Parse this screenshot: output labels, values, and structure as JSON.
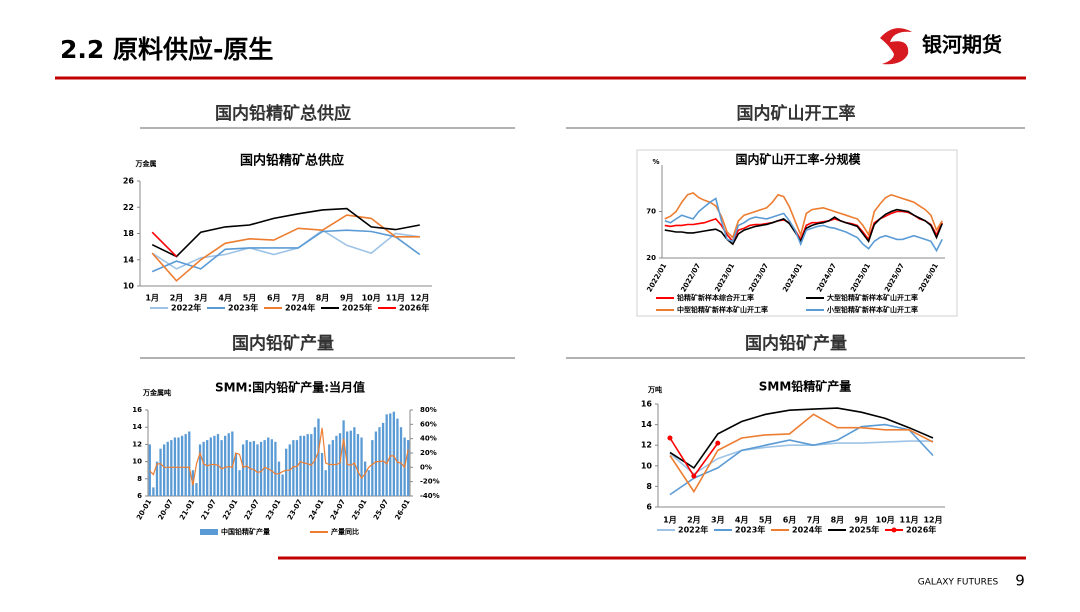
{
  "header": {
    "title": "2.2 原料供应-原生",
    "logo": "银河期货"
  },
  "sections": [
    "国内铅精矿总供应",
    "国内矿山开工率",
    "国内铅矿产量",
    "国内铅矿产量"
  ],
  "footer": {
    "brand": "GALAXY FUTURES",
    "page": "9"
  },
  "chart_data": [
    {
      "type": "line",
      "title": "国内铅精矿总供应",
      "y_label": "万金属",
      "categories": [
        "1月",
        "2月",
        "3月",
        "4月",
        "5月",
        "6月",
        "7月",
        "8月",
        "9月",
        "10月",
        "11月",
        "12月"
      ],
      "ylim": [
        10,
        26
      ],
      "yticks": [
        10,
        14,
        18,
        22,
        26
      ],
      "series": [
        {
          "name": "2022年",
          "color": "#9dc3e6",
          "values": [
            15,
            12.6,
            14.3,
            14.8,
            15.8,
            14.8,
            15.8,
            18.5,
            16.2,
            15,
            18,
            17.5
          ]
        },
        {
          "name": "2023年",
          "color": "#5b9bd5",
          "values": [
            12.2,
            13.8,
            12.6,
            15.6,
            15.8,
            15.8,
            15.8,
            18.3,
            18.5,
            18.3,
            17.5,
            14.8
          ]
        },
        {
          "name": "2024年",
          "color": "#ed7d31",
          "values": [
            15,
            10.8,
            14,
            16.5,
            17.2,
            17,
            18.8,
            18.5,
            20.8,
            20.3,
            17.5,
            17.5
          ]
        },
        {
          "name": "2025年",
          "color": "#000000",
          "values": [
            16.3,
            14.5,
            18.2,
            19,
            19.3,
            20.3,
            21,
            21.6,
            21.8,
            19,
            18.6,
            19.3
          ]
        },
        {
          "name": "2026年",
          "color": "#ff0000",
          "values": [
            18.2,
            14.5,
            null,
            null,
            null,
            null,
            null,
            null,
            null,
            null,
            null,
            null
          ]
        }
      ]
    },
    {
      "type": "line",
      "title": "国内矿山开工率-分规模",
      "y_label": "%",
      "categories": [
        "2022/01",
        null,
        null,
        null,
        null,
        null,
        "2022/07",
        null,
        null,
        null,
        null,
        null,
        "2023/01",
        null,
        null,
        null,
        null,
        null,
        "2023/07",
        null,
        null,
        null,
        null,
        null,
        "2024/01",
        null,
        null,
        null,
        null,
        null,
        "2024/07",
        null,
        null,
        null,
        null,
        null,
        "2025/01",
        null,
        null,
        null,
        null,
        null,
        "2025/07",
        null,
        null,
        null,
        null,
        null,
        "2026/01",
        null
      ],
      "ylim": [
        20,
        120
      ],
      "yticks": [
        20,
        70
      ],
      "series": [
        {
          "name": "铅精矿新样本综合开工率",
          "color": "#ff0000",
          "values": [
            55,
            54,
            55,
            55,
            56,
            56,
            57,
            58,
            60,
            62,
            55,
            45,
            38,
            50,
            52,
            55,
            56,
            56,
            57,
            58,
            60,
            61,
            58,
            50,
            40,
            55,
            58,
            58,
            59,
            60,
            62,
            60,
            58,
            57,
            55,
            48,
            40,
            58,
            62,
            65,
            68,
            70,
            70,
            69,
            66,
            62,
            60,
            56,
            45,
            58
          ]
        },
        {
          "name": "大型铅精矿新样本矿山开工率",
          "color": "#000000",
          "values": [
            50,
            49,
            48,
            48,
            47,
            47,
            48,
            49,
            50,
            51,
            48,
            40,
            35,
            46,
            50,
            52,
            54,
            55,
            56,
            58,
            60,
            62,
            57,
            48,
            38,
            52,
            55,
            57,
            58,
            60,
            64,
            60,
            58,
            56,
            54,
            46,
            38,
            56,
            62,
            67,
            70,
            72,
            71,
            70,
            66,
            63,
            60,
            55,
            42,
            57
          ]
        },
        {
          "name": "中型铅精矿新样本矿山开工率",
          "color": "#ed7d31",
          "values": [
            62,
            65,
            70,
            80,
            88,
            90,
            85,
            82,
            80,
            76,
            65,
            48,
            42,
            60,
            66,
            68,
            70,
            72,
            74,
            80,
            88,
            86,
            75,
            60,
            45,
            68,
            72,
            73,
            74,
            72,
            70,
            68,
            66,
            64,
            62,
            55,
            45,
            70,
            78,
            85,
            88,
            86,
            84,
            82,
            80,
            76,
            72,
            66,
            50,
            60
          ]
        },
        {
          "name": "小型铅精矿新样本矿山开工率",
          "color": "#5b9bd5",
          "values": [
            60,
            58,
            62,
            66,
            64,
            62,
            70,
            75,
            80,
            84,
            60,
            40,
            38,
            55,
            58,
            62,
            64,
            63,
            62,
            64,
            66,
            68,
            60,
            50,
            35,
            50,
            52,
            54,
            55,
            53,
            52,
            50,
            48,
            45,
            42,
            35,
            30,
            38,
            42,
            44,
            42,
            40,
            40,
            42,
            44,
            42,
            40,
            38,
            28,
            40
          ]
        }
      ]
    },
    {
      "type": "bar",
      "title": "SMM:国内铅矿产量:当月值",
      "y_label": "万金属吨",
      "categories": [
        "20-01",
        null,
        null,
        null,
        null,
        null,
        "20-07",
        null,
        null,
        null,
        null,
        null,
        "21-01",
        null,
        null,
        null,
        null,
        null,
        "21-07",
        null,
        null,
        null,
        null,
        null,
        "22-01",
        null,
        null,
        null,
        null,
        null,
        "22-07",
        null,
        null,
        null,
        null,
        null,
        "23-01",
        null,
        null,
        null,
        null,
        null,
        "23-07",
        null,
        null,
        null,
        null,
        null,
        "24-01",
        null,
        null,
        null,
        null,
        null,
        "24-07",
        null,
        null,
        null,
        null,
        null,
        "25-01",
        null,
        null,
        null,
        null,
        null,
        "25-07",
        null,
        null,
        null,
        null,
        null,
        "26-01"
      ],
      "ylim": [
        6,
        16
      ],
      "yticks": [
        6,
        8,
        10,
        12,
        14,
        16
      ],
      "y2lim": [
        -40,
        80
      ],
      "y2ticks": [
        {
          "value": -40,
          "label": "-40%"
        },
        {
          "value": -20,
          "label": "-20%"
        },
        {
          "value": 0,
          "label": "0%"
        },
        {
          "value": 20,
          "label": "20%"
        },
        {
          "value": 40,
          "label": "40%"
        },
        {
          "value": 60,
          "label": "60%"
        },
        {
          "value": 80,
          "label": "80%"
        }
      ],
      "series": [
        {
          "name": "中国铅精矿产量",
          "type": "bar",
          "color": "#5b9bd5",
          "values": [
            12,
            7,
            10,
            11.5,
            12,
            12.3,
            12.5,
            12.8,
            12.8,
            13,
            13.2,
            13.5,
            9,
            7.5,
            12,
            12.3,
            12.5,
            12.8,
            13,
            13.2,
            12.5,
            13,
            13.3,
            13.5,
            11,
            9,
            12,
            12.5,
            12.3,
            12.4,
            12,
            12.3,
            12.5,
            12.8,
            12.6,
            12.3,
            10,
            8.5,
            11.5,
            12,
            12.5,
            12.5,
            13,
            13,
            13.2,
            13.2,
            14,
            15,
            11,
            9,
            12,
            12.5,
            13,
            13.3,
            14.8,
            13.5,
            13.6,
            14,
            13.2,
            12.8,
            10,
            9,
            12.5,
            13.5,
            14,
            14.5,
            15.5,
            15.6,
            15.8,
            15,
            14,
            12.8,
            12.5
          ]
        },
        {
          "name": "产量同比",
          "type": "line",
          "axis": "y2",
          "color": "#ed7d31",
          "values": [
            -5,
            -10,
            5,
            5,
            0,
            0,
            0,
            0,
            0,
            0,
            0,
            0,
            -25,
            5,
            20,
            5,
            2,
            4,
            4,
            3,
            -2,
            0,
            1,
            0,
            20,
            18,
            0,
            2,
            -2,
            -3,
            -7,
            -6,
            0,
            -2,
            -5,
            -9,
            -9,
            -6,
            -4,
            -4,
            1,
            1,
            8,
            6,
            5,
            3,
            10,
            22,
            55,
            6,
            4,
            4,
            4,
            6,
            40,
            4,
            3,
            6,
            -6,
            -15,
            -9,
            0,
            4,
            8,
            8,
            9,
            5,
            16,
            16,
            7,
            6,
            0,
            25
          ]
        }
      ]
    },
    {
      "type": "line",
      "title": "SMM铅精矿产量",
      "y_label": "万吨",
      "categories": [
        "1月",
        "2月",
        "3月",
        "4月",
        "5月",
        "6月",
        "7月",
        "8月",
        "9月",
        "10月",
        "11月",
        "12月"
      ],
      "ylim": [
        6,
        16
      ],
      "yticks": [
        6,
        8,
        10,
        12,
        14,
        16
      ],
      "series": [
        {
          "name": "2022年",
          "color": "#9dc3e6",
          "values": [
            11.2,
            9.2,
            10.7,
            11.5,
            11.8,
            12,
            12,
            12.2,
            12.2,
            12.3,
            12.4,
            12.4
          ]
        },
        {
          "name": "2023年",
          "color": "#5b9bd5",
          "values": [
            7.2,
            8.8,
            9.8,
            11.5,
            12,
            12.5,
            12,
            12.5,
            13.8,
            14,
            13.5,
            11
          ]
        },
        {
          "name": "2024年",
          "color": "#ed7d31",
          "values": [
            11,
            7.5,
            11.5,
            12.7,
            13,
            13.1,
            15,
            13.7,
            13.7,
            13.5,
            13.5,
            12.3
          ]
        },
        {
          "name": "2025年",
          "color": "#000000",
          "values": [
            11.3,
            9.8,
            13.1,
            14.3,
            15,
            15.4,
            15.5,
            15.6,
            15.2,
            14.6,
            13.7,
            12.7
          ]
        },
        {
          "name": "2026年",
          "color": "#ff0000",
          "marker": true,
          "values": [
            12.7,
            9,
            12.2,
            null,
            null,
            null,
            null,
            null,
            null,
            null,
            null,
            null
          ]
        }
      ]
    }
  ]
}
